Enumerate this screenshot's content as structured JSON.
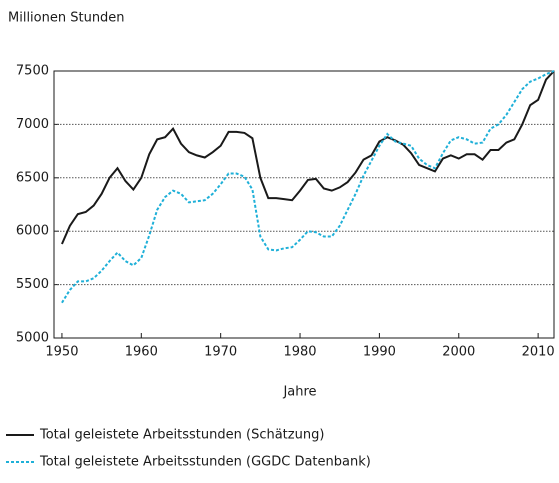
{
  "chart_data": {
    "type": "line",
    "y_label": "Millionen Stunden",
    "x_label": "Jahre",
    "x": [
      1950,
      1951,
      1952,
      1953,
      1954,
      1955,
      1956,
      1957,
      1958,
      1959,
      1960,
      1961,
      1962,
      1963,
      1964,
      1965,
      1966,
      1967,
      1968,
      1969,
      1970,
      1971,
      1972,
      1973,
      1974,
      1975,
      1976,
      1977,
      1978,
      1979,
      1980,
      1981,
      1982,
      1983,
      1984,
      1985,
      1986,
      1987,
      1988,
      1989,
      1990,
      1991,
      1992,
      1993,
      1994,
      1995,
      1996,
      1997,
      1998,
      1999,
      2000,
      2001,
      2002,
      2003,
      2004,
      2005,
      2006,
      2007,
      2008,
      2009,
      2010,
      2011,
      2012
    ],
    "series": [
      {
        "name": "Total geleistete Arbeitsstunden (Schätzung)",
        "color": "#1a1a1a",
        "dash": false,
        "values": [
          5880,
          6050,
          6160,
          6180,
          6240,
          6350,
          6500,
          6590,
          6470,
          6390,
          6500,
          6720,
          6860,
          6880,
          6960,
          6820,
          6740,
          6710,
          6690,
          6740,
          6800,
          6930,
          6930,
          6920,
          6870,
          6500,
          6310,
          6310,
          6300,
          6290,
          6380,
          6480,
          6490,
          6400,
          6380,
          6410,
          6460,
          6550,
          6670,
          6710,
          6840,
          6880,
          6850,
          6810,
          6730,
          6620,
          6590,
          6560,
          6680,
          6710,
          6680,
          6720,
          6720,
          6670,
          6760,
          6760,
          6830,
          6860,
          7000,
          7180,
          7230,
          7420,
          7500
        ]
      },
      {
        "name": "Total geleistete Arbeitsstunden (GGDC Datenbank)",
        "color": "#1fb0d8",
        "dash": true,
        "values": [
          5330,
          5450,
          5530,
          5530,
          5560,
          5630,
          5720,
          5800,
          5720,
          5680,
          5750,
          5960,
          6200,
          6320,
          6380,
          6350,
          6270,
          6280,
          6290,
          6350,
          6440,
          6540,
          6540,
          6510,
          6390,
          5950,
          5830,
          5820,
          5840,
          5850,
          5920,
          6000,
          5990,
          5950,
          5950,
          6050,
          6200,
          6350,
          6520,
          6660,
          6800,
          6910,
          6840,
          6820,
          6800,
          6680,
          6620,
          6590,
          6730,
          6850,
          6880,
          6860,
          6820,
          6830,
          6960,
          7000,
          7090,
          7210,
          7330,
          7400,
          7430,
          7470,
          7500
        ]
      }
    ],
    "xlim": [
      1949,
      2012
    ],
    "xticks": [
      1950,
      1960,
      1970,
      1980,
      1990,
      2000,
      2010
    ],
    "ylim": [
      5000,
      7500
    ],
    "yticks": [
      5000,
      5500,
      6000,
      6500,
      7000,
      7500
    ],
    "grid": true,
    "legend": "bottom"
  }
}
